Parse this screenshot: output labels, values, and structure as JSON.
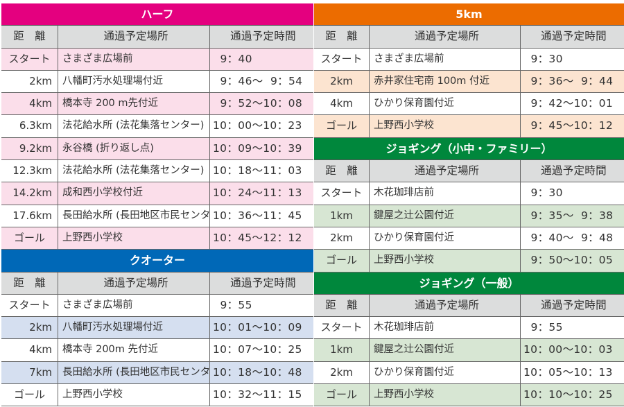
{
  "header_labels": {
    "distance": "距　離",
    "place": "通過予定場所",
    "time": "通過予定時間"
  },
  "left": [
    {
      "title": "ハーフ",
      "color": "#e4007f",
      "shade": "#fbdeea",
      "align": "right",
      "rows": [
        [
          "スタート",
          "さまざま広場前",
          "  9：40"
        ],
        [
          "2km",
          "八幡町汚水処理場付近",
          "  9：46～  9：54"
        ],
        [
          "4km",
          "橋本寺 200 m先付近",
          "  9：52～10：08"
        ],
        [
          "6.3km",
          "法花給水所 (法花集落センター)",
          "10：00～10：23"
        ],
        [
          "9.2km",
          "永谷橋 (折り返し点)",
          "10：09～10：39"
        ],
        [
          "12.3km",
          "法花給水所 (法花集落センター)",
          "10：18～11：03"
        ],
        [
          "14.2km",
          "成和西小学校付近",
          "10：24～11：13"
        ],
        [
          "17.6km",
          "長田給水所 (長田地区市民センター)",
          "10：36～11：45"
        ],
        [
          "ゴール",
          "上野西小学校",
          "10：45～12：12"
        ]
      ],
      "shaded": [
        0,
        2,
        4,
        6,
        8
      ]
    },
    {
      "title": "クオーター",
      "color": "#0068b7",
      "shade": "#d5dff0",
      "align": "right",
      "rows": [
        [
          "スタート",
          "さまざま広場前",
          "  9：55"
        ],
        [
          "2km",
          "八幡町汚水処理場付近",
          "10：01～10：09"
        ],
        [
          "4km",
          "橋本寺 200m 先付近",
          "10：07～10：25"
        ],
        [
          "7km",
          "長田給水所 (長田地区市民センター)",
          "10：18～10：48"
        ],
        [
          "ゴール",
          "上野西小学校",
          "10：32～11：15"
        ]
      ],
      "shaded": [
        1,
        3
      ]
    }
  ],
  "right": [
    {
      "title": "5km",
      "color": "#ec6c00",
      "shade": "#fce4d0",
      "align": "center",
      "rows": [
        [
          "スタート",
          "さまざま広場前",
          "  9：30"
        ],
        [
          "2km",
          "赤井家住宅南 100m 付近",
          "  9：36～  9：44"
        ],
        [
          "4km",
          "ひかり保育園付近",
          "  9：42～10：01"
        ],
        [
          "ゴール",
          "上野西小学校",
          "  9：45～10：12"
        ]
      ],
      "shaded": [
        1,
        3
      ]
    },
    {
      "title": "ジョギング（小中・ファミリー）",
      "color": "#00873c",
      "shade": "#d7e6d3",
      "align": "center",
      "rows": [
        [
          "スタート",
          "木花珈琲店前",
          "  9：30"
        ],
        [
          "1km",
          "鍵屋之辻公園付近",
          "  9：35～  9：38"
        ],
        [
          "2km",
          "ひかり保育園付近",
          "  9：40～  9：48"
        ],
        [
          "ゴール",
          "上野西小学校",
          "  9：50～10：05"
        ]
      ],
      "shaded": [
        1,
        3
      ]
    },
    {
      "title": "ジョギング（一般）",
      "color": "#00873c",
      "shade": "#d7e6d3",
      "align": "center",
      "rows": [
        [
          "スタート",
          "木花珈琲店前",
          "  9：55"
        ],
        [
          "1km",
          "鍵屋之辻公園付近",
          "10：00～10：03"
        ],
        [
          "2km",
          "ひかり保育園付近",
          "10：05～10：13"
        ],
        [
          "ゴール",
          "上野西小学校",
          "10：10～10：25"
        ]
      ],
      "shaded": [
        1,
        3
      ]
    }
  ]
}
